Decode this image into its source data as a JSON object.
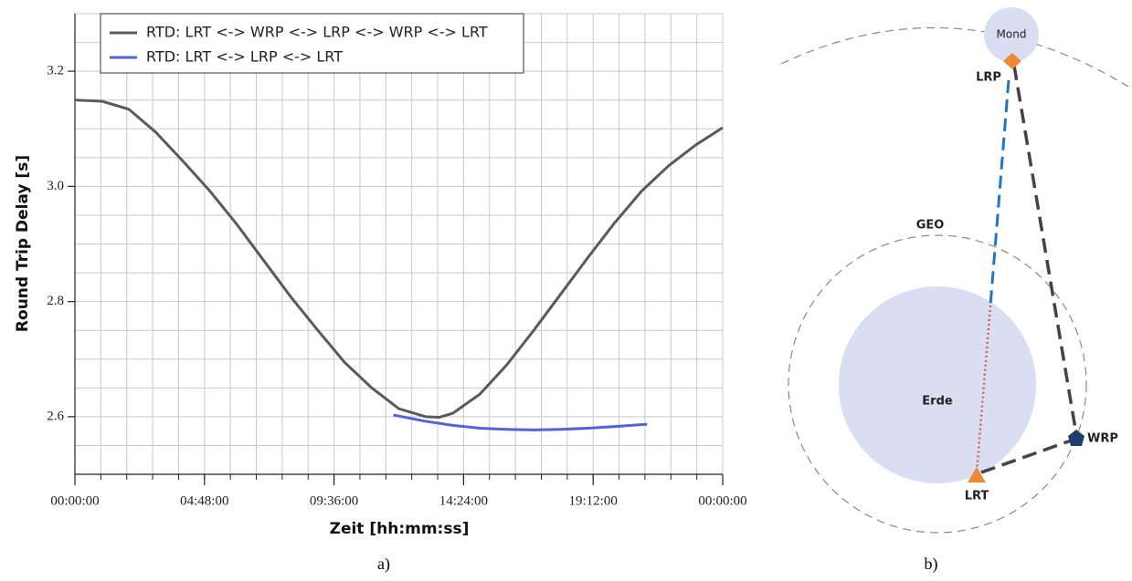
{
  "chart_data": {
    "type": "line",
    "xlabel": "Zeit [hh:mm:ss]",
    "ylabel": "Round Trip Delay [s]",
    "xlim": [
      0,
      24
    ],
    "ylim": [
      2.5,
      3.3
    ],
    "xticks": [
      {
        "value": 0,
        "label": "00:00:00"
      },
      {
        "value": 4.8,
        "label": "04:48:00"
      },
      {
        "value": 9.6,
        "label": "09:36:00"
      },
      {
        "value": 14.4,
        "label": "14:24:00"
      },
      {
        "value": 19.2,
        "label": "19:12:00"
      },
      {
        "value": 24,
        "label": "00:00:00"
      }
    ],
    "yticks": [
      2.6,
      2.8,
      {
        "value": 3,
        "label": "3.0"
      },
      3.2
    ],
    "xticks_minor": [
      0,
      0.96,
      1.92,
      2.88,
      3.84,
      4.8,
      5.76,
      6.72,
      7.68,
      8.64,
      9.6,
      10.56,
      11.52,
      12.48,
      13.44,
      14.4,
      15.36,
      16.32,
      17.28,
      18.24,
      19.2,
      20.16,
      21.12,
      22.08,
      23.04,
      24
    ],
    "yticks_minor": [
      2.5,
      2.55,
      2.6,
      2.65,
      2.7,
      2.75,
      2.8,
      2.85,
      2.9,
      2.95,
      3.0,
      3.05,
      3.1,
      3.15,
      3.2,
      3.25,
      3.3
    ],
    "grid": true,
    "legend": "upper left",
    "series": [
      {
        "name": "RTD: LRT <-> WRP <-> LRP <-> WRP <-> LRT",
        "color": "#5a5a5a",
        "x": [
          0,
          1,
          2,
          3,
          4,
          5,
          6,
          7,
          8,
          9,
          10,
          11,
          12,
          13,
          13.5,
          14,
          15,
          16,
          17,
          18,
          19,
          20,
          21,
          22,
          23,
          24
        ],
        "values": [
          3.15,
          3.148,
          3.134,
          3.094,
          3.044,
          2.992,
          2.934,
          2.871,
          2.808,
          2.75,
          2.694,
          2.65,
          2.614,
          2.6,
          2.599,
          2.606,
          2.639,
          2.69,
          2.75,
          2.813,
          2.876,
          2.937,
          2.992,
          3.036,
          3.072,
          3.102
        ]
      },
      {
        "name": "RTD: LRT <-> LRP <-> LRT",
        "color": "#4f63e0",
        "x": [
          11.8,
          13,
          14,
          15,
          16,
          17,
          18,
          19,
          20,
          21.2
        ],
        "values": [
          2.603,
          2.592,
          2.585,
          2.58,
          2.578,
          2.577,
          2.578,
          2.58,
          2.583,
          2.587
        ]
      }
    ]
  },
  "diagram": {
    "moon": "Mond",
    "earth": "Erde",
    "orbit": "GEO",
    "lrp": "LRP",
    "lrt": "LRT",
    "wrp": "WRP"
  },
  "captions": [
    "a)",
    "b)"
  ]
}
